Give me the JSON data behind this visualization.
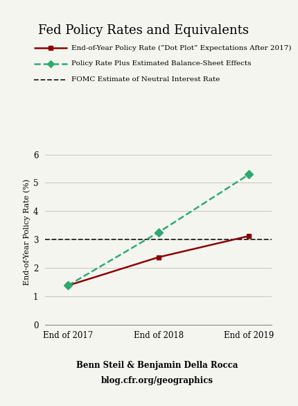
{
  "title": "Fed Policy Rates and Equivalents",
  "xlabel_ticks": [
    "End of 2017",
    "End of 2018",
    "End of 2019"
  ],
  "x_values": [
    0,
    1,
    2
  ],
  "policy_rate": [
    1.375,
    2.375,
    3.125
  ],
  "balance_sheet": [
    1.375,
    3.25,
    5.3
  ],
  "neutral_rate": 3.0,
  "ylabel": "End-of-Year Policy Rate (%)",
  "ylim": [
    0,
    6.5
  ],
  "yticks": [
    0,
    1,
    2,
    3,
    4,
    5,
    6
  ],
  "legend": [
    "End-of-Year Policy Rate (“Dot Plot” Expectations After 2017)",
    "Policy Rate Plus Estimated Balance-Sheet Effects",
    "FOMC Estimate of Neutral Interest Rate"
  ],
  "policy_rate_color": "#8B0000",
  "balance_sheet_color": "#2EAA6E",
  "neutral_rate_color": "#222222",
  "attribution_line1": "Benn Steil & Benjamin Della Rocca",
  "attribution_line2": "blog.cfr.org/geographics",
  "background_color": "#f5f5f0",
  "title_fontsize": 13,
  "label_fontsize": 8,
  "legend_fontsize": 7.5,
  "tick_fontsize": 8.5,
  "attr_fontsize": 8.5
}
